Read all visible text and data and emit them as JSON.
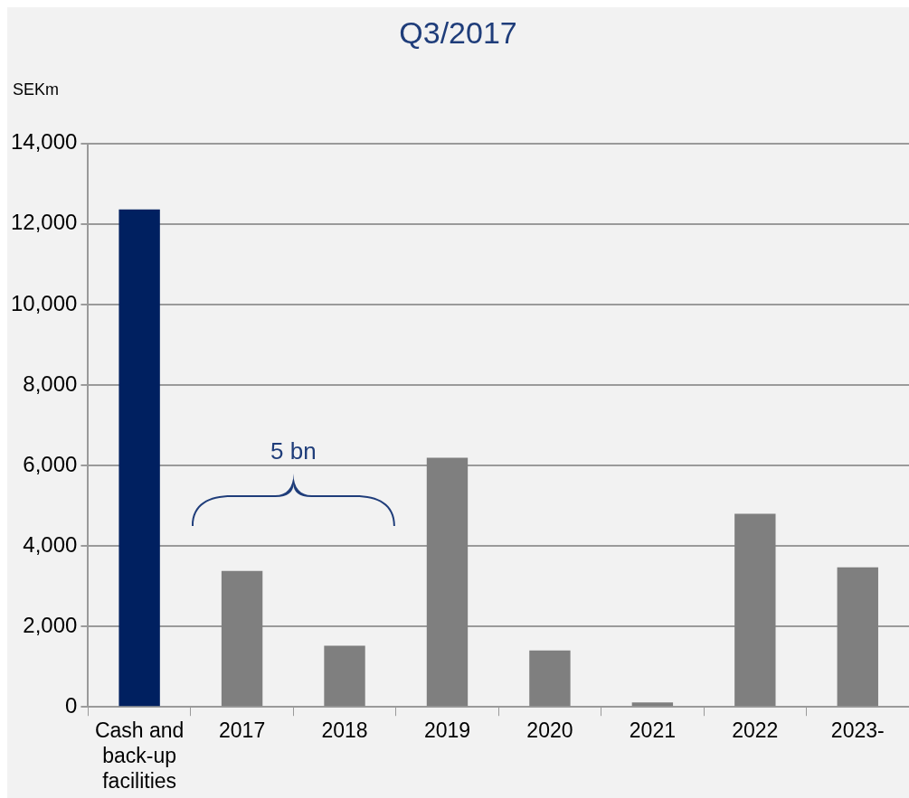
{
  "chart_data": {
    "type": "bar",
    "title": "Q3/2017",
    "ylabel": "SEKm",
    "categories": [
      "Cash and back-up facilities",
      "2017",
      "2018",
      "2019",
      "2020",
      "2021",
      "2022",
      "2023-"
    ],
    "values": [
      12360,
      3380,
      1520,
      6190,
      1400,
      110,
      4800,
      3470
    ],
    "colors": [
      "#002060",
      "#7f7f7f",
      "#7f7f7f",
      "#7f7f7f",
      "#7f7f7f",
      "#7f7f7f",
      "#7f7f7f",
      "#7f7f7f"
    ],
    "ylim": [
      0,
      14000
    ],
    "yticks": [
      0,
      {
        "value": 2000,
        "label": "2,000"
      },
      {
        "value": 4000,
        "label": "4,000"
      },
      {
        "value": 6000,
        "label": "6,000"
      },
      {
        "value": 8000,
        "label": "8,000"
      },
      {
        "value": 10000,
        "label": "10,000"
      },
      {
        "value": 12000,
        "label": "12,000"
      },
      {
        "value": 14000,
        "label": "14,000"
      }
    ],
    "grid": "y",
    "legend": false,
    "annotations": [
      "5 bn"
    ]
  }
}
